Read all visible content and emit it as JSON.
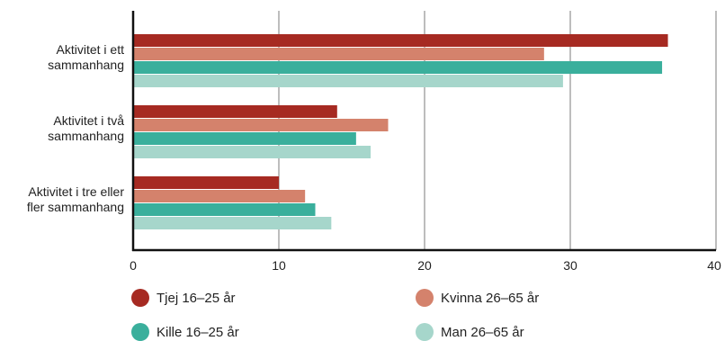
{
  "chart_data": {
    "type": "bar",
    "orientation": "horizontal",
    "categories": [
      [
        "Aktivitet i ett",
        "sammanhang"
      ],
      [
        "Aktivitet i två",
        "sammanhang"
      ],
      [
        "Aktivitet i tre eller",
        "fler sammanhang"
      ]
    ],
    "series": [
      {
        "name": "Tjej 16–25 år",
        "color": "#a62a22",
        "values": [
          36.7,
          14.0,
          10.0
        ]
      },
      {
        "name": "Kvinna 26–65 år",
        "color": "#d4826c",
        "values": [
          28.2,
          17.5,
          11.8
        ]
      },
      {
        "name": "Kille 16–25 år",
        "color": "#3aaf9c",
        "values": [
          36.3,
          15.3,
          12.5
        ]
      },
      {
        "name": "Man 26–65 år",
        "color": "#a6d6cb",
        "values": [
          29.5,
          16.3,
          13.6
        ]
      }
    ],
    "xlim": [
      0,
      40
    ],
    "xticks": [
      "0",
      "10",
      "20",
      "30",
      "40"
    ],
    "grid": true,
    "legend_position": "bottom"
  }
}
